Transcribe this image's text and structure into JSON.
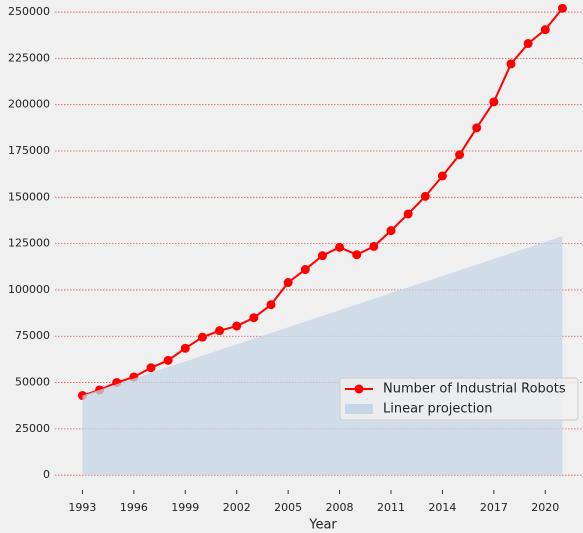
{
  "chart_data": {
    "type": "line",
    "x_label": "Year",
    "x": [
      1993,
      1994,
      1995,
      1996,
      1997,
      1998,
      1999,
      2000,
      2001,
      2002,
      2003,
      2004,
      2005,
      2006,
      2007,
      2008,
      2009,
      2010,
      2011,
      2012,
      2013,
      2014,
      2015,
      2016,
      2017,
      2018,
      2019,
      2020,
      2021
    ],
    "series": [
      {
        "name": "Number of Industrial Robots",
        "color": "#ff0000",
        "values": [
          43000,
          46000,
          50000,
          53000,
          58000,
          62000,
          68500,
          74500,
          78000,
          80500,
          85000,
          92000,
          104000,
          111000,
          118500,
          123000,
          119000,
          123500,
          132000,
          141000,
          150500,
          161500,
          173000,
          187500,
          201500,
          222000,
          233000,
          240500,
          252000
        ]
      },
      {
        "name": "Linear projection",
        "color": "#c5d6e6",
        "style": "area",
        "x": [
          1993,
          2021
        ],
        "values": [
          43000,
          129000
        ]
      }
    ],
    "xlim": [
      1991.4,
      2022.2
    ],
    "xticks": [
      1993,
      1996,
      1999,
      2002,
      2005,
      2008,
      2011,
      2014,
      2017,
      2020
    ],
    "ylim": [
      -8000,
      256500
    ],
    "yticks": [
      0,
      25000,
      50000,
      75000,
      100000,
      125000,
      150000,
      175000,
      200000,
      225000,
      250000
    ],
    "grid": true,
    "grid_color": "#e05050",
    "legend": "lower right"
  }
}
